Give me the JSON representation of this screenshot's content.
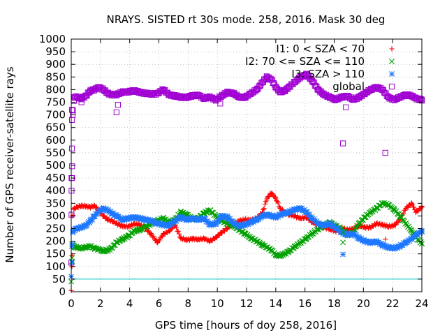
{
  "chart_data": {
    "type": "scatter",
    "title": "NRAYS. SISTED rt 30s mode. 258, 2016. Mask 30 deg",
    "xlabel": "GPS time [hours of doy 258, 2016]",
    "ylabel": "Number of GPS receiver-satellite rays",
    "xlim": [
      0,
      24
    ],
    "ylim": [
      0,
      1000
    ],
    "xticks": [
      0,
      2,
      4,
      6,
      8,
      10,
      12,
      14,
      16,
      18,
      20,
      22,
      24
    ],
    "yticks": [
      0,
      50,
      100,
      150,
      200,
      250,
      300,
      350,
      400,
      450,
      500,
      550,
      600,
      650,
      700,
      750,
      800,
      850,
      900,
      950,
      1000
    ],
    "grid": "dotted",
    "legend_position": "top-right",
    "reference_line": {
      "y": 50,
      "color": "#00c8c8"
    },
    "series": [
      {
        "name": "I1: 0 < SZA < 70",
        "marker": "+",
        "color": "#ff0000",
        "x": [
          0,
          0.05,
          0.1,
          0.2,
          0.4,
          0.7,
          1,
          1.3,
          1.6,
          1.9,
          2.2,
          2.5,
          2.8,
          3.1,
          3.5,
          3.9,
          4.3,
          4.7,
          5.1,
          5.5,
          5.9,
          6.3,
          6.7,
          7.1,
          7.5,
          7.9,
          8.3,
          8.7,
          9.1,
          9.5,
          9.9,
          10.3,
          10.7,
          11.1,
          11.5,
          11.9,
          12.3,
          12.7,
          13.1,
          13.4,
          13.7,
          14.0,
          14.3,
          14.6,
          14.9,
          15.3,
          15.7,
          16.1,
          16.5,
          16.9,
          17.3,
          17.7,
          18.1,
          18.5,
          18.9,
          19.3,
          19.7,
          20.1,
          20.5,
          20.9,
          21.3,
          21.7,
          22.1,
          22.5,
          22.9,
          23.3,
          23.6,
          24
        ],
        "y": [
          5,
          100,
          300,
          330,
          335,
          340,
          338,
          335,
          340,
          320,
          300,
          285,
          280,
          270,
          260,
          258,
          268,
          265,
          250,
          225,
          195,
          228,
          240,
          265,
          212,
          205,
          210,
          207,
          210,
          200,
          215,
          235,
          252,
          270,
          280,
          285,
          283,
          290,
          315,
          370,
          390,
          370,
          330,
          315,
          305,
          300,
          290,
          295,
          275,
          265,
          255,
          248,
          240,
          250,
          245,
          248,
          262,
          255,
          255,
          270,
          265,
          258,
          262,
          285,
          330,
          350,
          315,
          335
        ]
      },
      {
        "name": "I2: 70 <= SZA <= 110",
        "marker": "x",
        "color": "#00a000",
        "x": [
          0,
          0.05,
          0.1,
          0.2,
          0.4,
          0.7,
          1,
          1.3,
          1.6,
          1.9,
          2.2,
          2.5,
          2.8,
          3.1,
          3.5,
          3.9,
          4.3,
          4.7,
          5.1,
          5.5,
          5.9,
          6.3,
          6.7,
          7.1,
          7.5,
          7.9,
          8.3,
          8.7,
          9.1,
          9.5,
          9.9,
          10.3,
          10.7,
          11.1,
          11.5,
          11.9,
          12.3,
          12.7,
          13.1,
          13.4,
          13.7,
          14.0,
          14.3,
          14.6,
          14.9,
          15.3,
          15.7,
          16.1,
          16.5,
          16.9,
          17.3,
          17.7,
          18.1,
          18.5,
          18.9,
          19.3,
          19.7,
          20.1,
          20.5,
          20.9,
          21.3,
          21.7,
          22.1,
          22.5,
          22.9,
          23.3,
          23.6,
          24
        ],
        "y": [
          40,
          120,
          190,
          178,
          175,
          172,
          176,
          180,
          172,
          168,
          160,
          165,
          175,
          195,
          208,
          220,
          240,
          245,
          258,
          270,
          282,
          290,
          275,
          285,
          315,
          305,
          288,
          292,
          312,
          322,
          300,
          280,
          270,
          260,
          245,
          230,
          212,
          200,
          185,
          175,
          165,
          145,
          142,
          150,
          160,
          178,
          195,
          212,
          230,
          248,
          262,
          275,
          260,
          248,
          225,
          235,
          270,
          295,
          315,
          330,
          350,
          345,
          325,
          300,
          270,
          240,
          215,
          190
        ]
      },
      {
        "name": "I3: SZA > 110",
        "marker": "*",
        "color": "#1e78ff",
        "x": [
          0,
          0.05,
          0.1,
          0.2,
          0.4,
          0.7,
          1,
          1.3,
          1.6,
          1.9,
          2.2,
          2.5,
          2.8,
          3.1,
          3.5,
          3.9,
          4.3,
          4.7,
          5.1,
          5.5,
          5.9,
          6.3,
          6.7,
          7.1,
          7.5,
          7.9,
          8.3,
          8.7,
          9.1,
          9.5,
          9.9,
          10.3,
          10.7,
          11.1,
          11.5,
          11.9,
          12.3,
          12.7,
          13.1,
          13.4,
          13.7,
          14.0,
          14.3,
          14.6,
          14.9,
          15.3,
          15.7,
          16.1,
          16.5,
          16.9,
          17.3,
          17.7,
          18.1,
          18.5,
          18.9,
          19.3,
          19.7,
          20.1,
          20.5,
          20.9,
          21.3,
          21.7,
          22.1,
          22.5,
          22.9,
          23.3,
          23.6,
          24
        ],
        "y": [
          60,
          180,
          235,
          245,
          250,
          255,
          262,
          280,
          300,
          318,
          330,
          322,
          310,
          300,
          285,
          290,
          295,
          290,
          285,
          280,
          270,
          265,
          262,
          280,
          295,
          285,
          290,
          285,
          290,
          265,
          270,
          300,
          295,
          272,
          260,
          265,
          275,
          285,
          300,
          305,
          300,
          295,
          305,
          310,
          315,
          325,
          330,
          315,
          290,
          270,
          262,
          270,
          252,
          235,
          225,
          230,
          212,
          200,
          195,
          198,
          185,
          175,
          172,
          180,
          195,
          210,
          225,
          240
        ]
      },
      {
        "name": "global",
        "marker": "square",
        "color": "#a000d2",
        "x": [
          0,
          0.05,
          0.1,
          0.2,
          0.4,
          0.7,
          1,
          1.3,
          1.6,
          1.9,
          2.2,
          2.5,
          2.8,
          3.1,
          3.5,
          3.9,
          4.3,
          4.7,
          5.1,
          5.5,
          5.9,
          6.3,
          6.7,
          7.1,
          7.5,
          7.9,
          8.3,
          8.7,
          9.1,
          9.5,
          9.9,
          10.3,
          10.7,
          11.1,
          11.5,
          11.9,
          12.3,
          12.7,
          13.1,
          13.4,
          13.7,
          14.0,
          14.3,
          14.6,
          14.9,
          15.3,
          15.7,
          16.1,
          16.5,
          16.9,
          17.3,
          17.7,
          18.1,
          18.5,
          18.9,
          19.3,
          19.7,
          20.1,
          20.5,
          20.9,
          21.3,
          21.7,
          22.1,
          22.5,
          22.9,
          23.3,
          23.6,
          24
        ],
        "y": [
          115,
          450,
          700,
          770,
          770,
          765,
          775,
          795,
          800,
          810,
          800,
          785,
          780,
          780,
          790,
          792,
          795,
          790,
          785,
          782,
          785,
          800,
          780,
          775,
          770,
          770,
          775,
          778,
          765,
          770,
          760,
          775,
          790,
          785,
          770,
          770,
          785,
          800,
          830,
          850,
          840,
          810,
          790,
          795,
          810,
          830,
          850,
          860,
          835,
          800,
          780,
          770,
          760,
          770,
          775,
          760,
          770,
          785,
          800,
          810,
          800,
          770,
          760,
          770,
          780,
          775,
          765,
          760
        ]
      }
    ],
    "outliers": [
      {
        "series": "global",
        "x": 0.05,
        "y": 680
      },
      {
        "series": "global",
        "x": 0.05,
        "y": 720
      },
      {
        "series": "global",
        "x": 0.05,
        "y": 567
      },
      {
        "series": "global",
        "x": 0.02,
        "y": 400
      },
      {
        "series": "global",
        "x": 0.02,
        "y": 450
      },
      {
        "series": "global",
        "x": 0.02,
        "y": 305
      },
      {
        "series": "global",
        "x": 0.7,
        "y": 750
      },
      {
        "series": "global",
        "x": 3.1,
        "y": 710
      },
      {
        "series": "global",
        "x": 3.2,
        "y": 740
      },
      {
        "series": "global",
        "x": 18.6,
        "y": 587
      },
      {
        "series": "global",
        "x": 21.5,
        "y": 550
      },
      {
        "series": "global",
        "x": 18.8,
        "y": 730
      },
      {
        "series": "global",
        "x": 10.2,
        "y": 745
      },
      {
        "series": "I1: 0 < SZA < 70",
        "x": 21.5,
        "y": 208
      },
      {
        "series": "I2: 70 <= SZA <= 110",
        "x": 18.6,
        "y": 195
      },
      {
        "series": "I2: 70 <= SZA <= 110",
        "x": 18.6,
        "y": 235
      },
      {
        "series": "I3: SZA > 110",
        "x": 18.6,
        "y": 148
      },
      {
        "series": "I3: SZA > 110",
        "x": 0.05,
        "y": 115
      }
    ]
  }
}
